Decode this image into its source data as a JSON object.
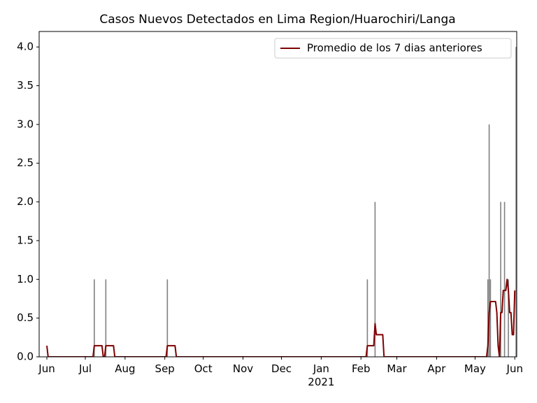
{
  "chart_data": {
    "type": "bar_line",
    "title": "Casos Nuevos Detectados en Lima Region/Huarochiri/Langa",
    "xlim": [
      -6,
      366.5
    ],
    "xticks": [
      {
        "value": 0,
        "label": "Jun"
      },
      {
        "value": 30,
        "label": "Jul"
      },
      {
        "value": 61,
        "label": "Aug"
      },
      {
        "value": 92,
        "label": "Sep"
      },
      {
        "value": 122,
        "label": "Oct"
      },
      {
        "value": 153,
        "label": "Nov"
      },
      {
        "value": 183,
        "label": "Dec"
      },
      {
        "value": 214,
        "label": "Jan\n2021"
      },
      {
        "value": 245,
        "label": "Feb"
      },
      {
        "value": 273,
        "label": "Mar"
      },
      {
        "value": 304,
        "label": "Apr"
      },
      {
        "value": 334,
        "label": "May"
      },
      {
        "value": 365,
        "label": "Jun"
      }
    ],
    "ylim": [
      0,
      4.2
    ],
    "yticks": [
      {
        "value": 0,
        "label": "0.0"
      },
      {
        "value": 0.5,
        "label": "0.5"
      },
      {
        "value": 1,
        "label": "1.0"
      },
      {
        "value": 1.5,
        "label": "1.5"
      },
      {
        "value": 2,
        "label": "2.0"
      },
      {
        "value": 2.5,
        "label": "2.5"
      },
      {
        "value": 3,
        "label": "3.0"
      },
      {
        "value": 3.5,
        "label": "3.5"
      },
      {
        "value": 4,
        "label": "4.0"
      }
    ],
    "legend": "upper right",
    "series": [
      {
        "kind": "bar",
        "color": "#808080",
        "x": [
          37,
          46,
          94,
          250,
          256,
          344,
          345,
          346,
          354,
          357,
          360,
          366
        ],
        "values": [
          1,
          1,
          1,
          1,
          2,
          1,
          3,
          1,
          2,
          2,
          1,
          4
        ]
      },
      {
        "kind": "line",
        "name": "Promedio de los 7 dias anteriores",
        "color": "#800000",
        "x": [
          0,
          1,
          36,
          37,
          43,
          44,
          45,
          46,
          52,
          53,
          93,
          94,
          100,
          101,
          249,
          250,
          255,
          256,
          257,
          262,
          263,
          343,
          344,
          345,
          346,
          350,
          351,
          352,
          353,
          354,
          355,
          356,
          358,
          359,
          360,
          361,
          362,
          363,
          364,
          365
        ],
        "values": [
          0.143,
          0,
          0,
          0.143,
          0.143,
          0,
          0,
          0.143,
          0.143,
          0,
          0,
          0.143,
          0.143,
          0,
          0,
          0.143,
          0.143,
          0.429,
          0.286,
          0.286,
          0,
          0,
          0.143,
          0.571,
          0.714,
          0.714,
          0.571,
          0.143,
          0,
          0.571,
          0.571,
          0.857,
          0.857,
          1.0,
          0.857,
          0.571,
          0.571,
          0.286,
          0.286,
          0.857
        ]
      }
    ]
  }
}
